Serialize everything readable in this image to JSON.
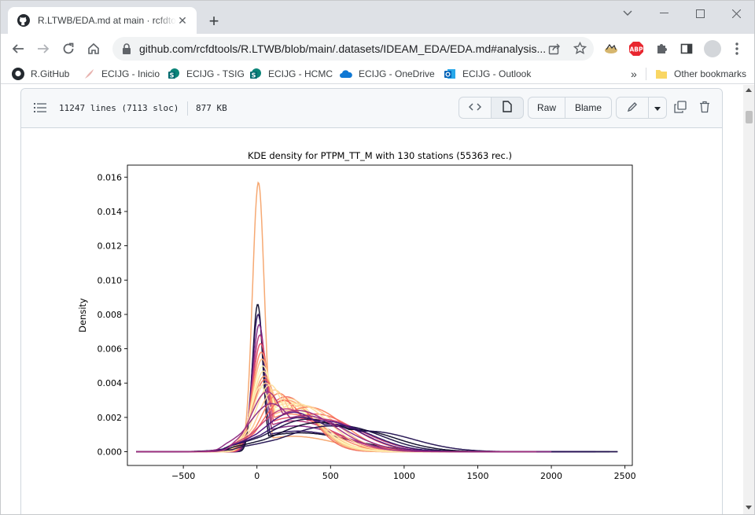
{
  "browser": {
    "tab_title": "R.LTWB/EDA.md at main · rcfdtools",
    "url": "github.com/rcfdtools/R.LTWB/blob/main/.datasets/IDEAM_EDA/EDA.md#analysis...",
    "bookmarks": [
      {
        "label": "R.GitHub",
        "icon": "github-icon"
      },
      {
        "label": "ECIJG - Inicio",
        "icon": "feather-icon"
      },
      {
        "label": "ECIJG - TSIG",
        "icon": "sharepoint-icon"
      },
      {
        "label": "ECIJG - HCMC",
        "icon": "sharepoint-icon"
      },
      {
        "label": "ECIJG - OneDrive",
        "icon": "onedrive-icon"
      },
      {
        "label": "ECIJG - Outlook",
        "icon": "outlook-icon"
      }
    ],
    "other_bookmarks": "Other bookmarks",
    "overflow": "»",
    "extension_abp": "ABP"
  },
  "file_header": {
    "lines": "11247 lines (7113 sloc)",
    "size": "877 KB",
    "raw_label": "Raw",
    "blame_label": "Blame"
  },
  "chart_data": {
    "type": "line",
    "title": "KDE density for PTPM_TT_M with 130 stations (55363 rec.)",
    "xlabel": "",
    "ylabel": "Density",
    "xlim": [
      -880,
      2550
    ],
    "ylim": [
      -0.0008,
      0.0167
    ],
    "xticks": [
      -500,
      0,
      500,
      1000,
      1500,
      2000,
      2500
    ],
    "xtick_labels": [
      "−500",
      "0",
      "500",
      "1000",
      "1500",
      "2000",
      "2500"
    ],
    "yticks": [
      0.0,
      0.002,
      0.004,
      0.006,
      0.008,
      0.01,
      0.012,
      0.014,
      0.016
    ],
    "ytick_labels": [
      "0.000",
      "0.002",
      "0.004",
      "0.006",
      "0.008",
      "0.010",
      "0.012",
      "0.014",
      "0.016"
    ],
    "grid": false,
    "series_count": 130,
    "colormap": "magma",
    "series": [
      {
        "peak_x": 10,
        "peak_y": 0.0157,
        "width": 40,
        "tail": 0.0009,
        "tail_w": 260,
        "color": "#f6a46c",
        "x_min": -820,
        "x_max": 1700
      },
      {
        "peak_x": 5,
        "peak_y": 0.0086,
        "width": 35,
        "tail": 0.0011,
        "tail_w": 320,
        "color": "#0d0a29",
        "x_min": -820,
        "x_max": 2300
      },
      {
        "peak_x": 8,
        "peak_y": 0.008,
        "width": 40,
        "tail": 0.0012,
        "tail_w": 300,
        "color": "#2b115e",
        "x_min": -820,
        "x_max": 2100
      },
      {
        "peak_x": 15,
        "peak_y": 0.0074,
        "width": 45,
        "tail": 0.0015,
        "tail_w": 280,
        "color": "#7e2482",
        "x_min": -820,
        "x_max": 2000
      },
      {
        "peak_x": 20,
        "peak_y": 0.0068,
        "width": 50,
        "tail": 0.0018,
        "tail_w": 260,
        "color": "#b5367a",
        "x_min": -820,
        "x_max": 1900
      },
      {
        "peak_x": 25,
        "peak_y": 0.0063,
        "width": 55,
        "tail": 0.002,
        "tail_w": 240,
        "color": "#e55064",
        "x_min": -820,
        "x_max": 1800
      },
      {
        "peak_x": 30,
        "peak_y": 0.0058,
        "width": 60,
        "tail": 0.0022,
        "tail_w": 220,
        "color": "#fb8761",
        "x_min": -820,
        "x_max": 1700
      },
      {
        "peak_x": 35,
        "peak_y": 0.0054,
        "width": 65,
        "tail": 0.0024,
        "tail_w": 200,
        "color": "#febb81",
        "x_min": -820,
        "x_max": 1700
      },
      {
        "peak_x": 40,
        "peak_y": 0.005,
        "width": 70,
        "tail": 0.0026,
        "tail_w": 190,
        "color": "#fcfdbf",
        "x_min": -820,
        "x_max": 1700
      },
      {
        "peak_x": 45,
        "peak_y": 0.0047,
        "width": 75,
        "tail": 0.0028,
        "tail_w": 180,
        "color": "#fde2a1",
        "x_min": -820,
        "x_max": 1700
      },
      {
        "peak_x": 50,
        "peak_y": 0.0044,
        "width": 80,
        "tail": 0.003,
        "tail_w": 170,
        "color": "#f89f6b",
        "x_min": -820,
        "x_max": 1700
      },
      {
        "peak_x": 55,
        "peak_y": 0.0042,
        "width": 85,
        "tail": 0.0032,
        "tail_w": 160,
        "color": "#f06b5d",
        "x_min": -820,
        "x_max": 1700
      },
      {
        "peak_x": 60,
        "peak_y": 0.004,
        "width": 90,
        "tail": 0.0031,
        "tail_w": 170,
        "color": "#fcd496",
        "x_min": -820,
        "x_max": 1700
      },
      {
        "peak_x": 25,
        "peak_y": 0.0038,
        "width": 70,
        "tail": 0.0029,
        "tail_w": 200,
        "color": "#fef0b6",
        "x_min": -820,
        "x_max": 1700
      },
      {
        "peak_x": 150,
        "peak_y": 0.0034,
        "width": 120,
        "tail": 0.0026,
        "tail_w": 220,
        "color": "#fa7f5e",
        "x_min": -820,
        "x_max": 1700
      },
      {
        "peak_x": 180,
        "peak_y": 0.003,
        "width": 140,
        "tail": 0.0022,
        "tail_w": 240,
        "color": "#f4645a",
        "x_min": -820,
        "x_max": 1700
      },
      {
        "peak_x": 120,
        "peak_y": 0.0036,
        "width": 110,
        "tail": 0.0027,
        "tail_w": 210,
        "color": "#fec98d",
        "x_min": -820,
        "x_max": 1700
      },
      {
        "peak_x": 90,
        "peak_y": 0.0039,
        "width": 100,
        "tail": 0.0028,
        "tail_w": 200,
        "color": "#fddf9e",
        "x_min": -820,
        "x_max": 1700
      },
      {
        "peak_x": 200,
        "peak_y": 0.0025,
        "width": 180,
        "tail": 0.0019,
        "tail_w": 260,
        "color": "#c83e73",
        "x_min": -820,
        "x_max": 1900
      },
      {
        "peak_x": 350,
        "peak_y": 0.0019,
        "width": 260,
        "tail": 0.0015,
        "tail_w": 250,
        "color": "#1a1042",
        "x_min": -820,
        "x_max": 2400
      },
      {
        "peak_x": 420,
        "peak_y": 0.0017,
        "width": 280,
        "tail": 0.0013,
        "tail_w": 260,
        "color": "#0d0a29",
        "x_min": -820,
        "x_max": 2450
      },
      {
        "peak_x": 300,
        "peak_y": 0.002,
        "width": 230,
        "tail": 0.0016,
        "tail_w": 240,
        "color": "#311167",
        "x_min": -820,
        "x_max": 2300
      },
      {
        "peak_x": 250,
        "peak_y": 0.0023,
        "width": 200,
        "tail": 0.0018,
        "tail_w": 230,
        "color": "#51127c",
        "x_min": -820,
        "x_max": 2200
      },
      {
        "peak_x": 500,
        "peak_y": 0.0015,
        "width": 300,
        "tail": 0.0012,
        "tail_w": 280,
        "color": "#221150",
        "x_min": -820,
        "x_max": 2450
      },
      {
        "peak_x": 100,
        "peak_y": 0.0028,
        "width": 150,
        "tail": 0.0021,
        "tail_w": 250,
        "color": "#8c2981",
        "x_min": -820,
        "x_max": 2000
      },
      {
        "peak_x": 70,
        "peak_y": 0.0035,
        "width": 110,
        "tail": 0.0024,
        "tail_w": 230,
        "color": "#a3307e",
        "x_min": -820,
        "x_max": 1900
      }
    ]
  }
}
